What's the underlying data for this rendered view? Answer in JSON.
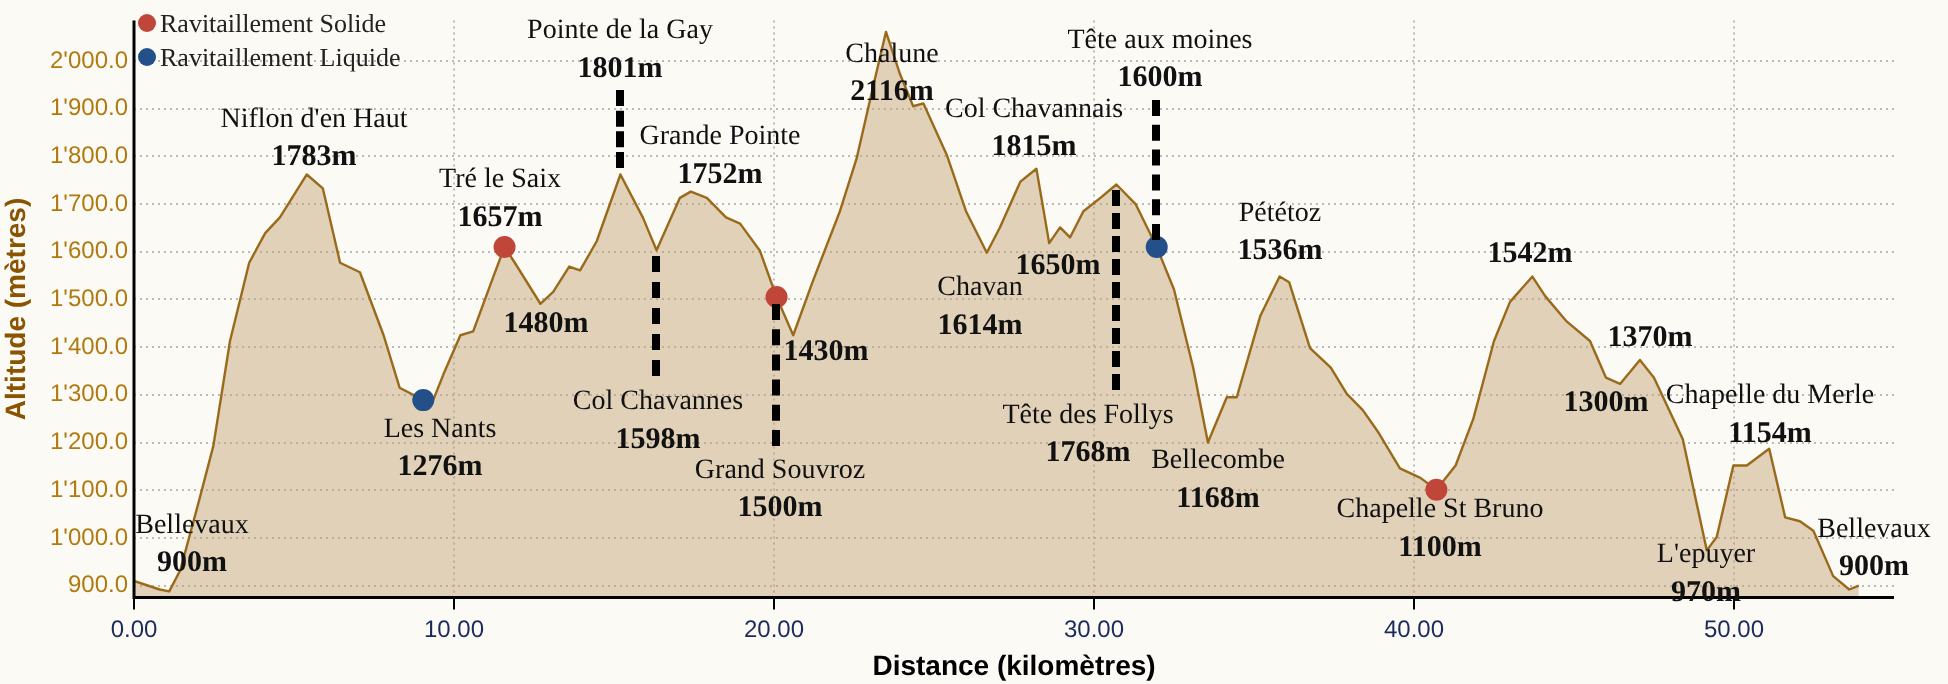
{
  "chart_data": {
    "type": "area",
    "xlabel": "Distance (kilomètres)",
    "ylabel": "Altitude (mètres)",
    "xlim": [
      0,
      55
    ],
    "ylim": [
      875,
      2085
    ],
    "xticks": [
      {
        "value": 0,
        "label": "0.00"
      },
      {
        "value": 10,
        "label": "10.00"
      },
      {
        "value": 20,
        "label": "20.00"
      },
      {
        "value": 30,
        "label": "30.00"
      },
      {
        "value": 40,
        "label": "40.00"
      },
      {
        "value": 50,
        "label": "50.00"
      }
    ],
    "yticks": [
      {
        "value": 900,
        "label": "900.0"
      },
      {
        "value": 1000,
        "label": "1'000.0"
      },
      {
        "value": 1100,
        "label": "1'100.0"
      },
      {
        "value": 1200,
        "label": "1'200.0"
      },
      {
        "value": 1300,
        "label": "1'300.0"
      },
      {
        "value": 1400,
        "label": "1'400.0"
      },
      {
        "value": 1500,
        "label": "1'500.0"
      },
      {
        "value": 1600,
        "label": "1'600.0"
      },
      {
        "value": 1700,
        "label": "1'700.0"
      },
      {
        "value": 1800,
        "label": "1'800.0"
      },
      {
        "value": 1900,
        "label": "1'900.0"
      },
      {
        "value": 2000,
        "label": "2'000.0"
      }
    ],
    "grid": true,
    "legend": "top left",
    "series": [
      {
        "color": "#9a6a1a",
        "x": [
          0,
          0.8,
          1.1,
          1.45,
          2.06,
          2.48,
          3.0,
          3.6,
          4.1,
          4.56,
          5.4,
          5.9,
          6.44,
          7.06,
          7.8,
          8.3,
          9.04,
          9.35,
          9.67,
          10.2,
          10.6,
          11.23,
          11.58,
          11.9,
          12.7,
          13.1,
          13.6,
          13.94,
          14.46,
          15.2,
          15.9,
          16.33,
          17.06,
          17.4,
          17.9,
          18.5,
          18.94,
          19.56,
          20.08,
          20.6,
          21.2,
          22.06,
          22.58,
          23.1,
          23.5,
          23.94,
          24.35,
          24.67,
          25.4,
          26.0,
          26.65,
          27.06,
          27.7,
          28.2,
          28.6,
          28.94,
          29.25,
          29.67,
          30.2,
          30.7,
          31.3,
          31.96,
          32.5,
          33.1,
          33.56,
          34.15,
          34.46,
          35.2,
          35.8,
          36.1,
          36.75,
          37.4,
          37.9,
          38.4,
          38.9,
          39.56,
          40.2,
          40.7,
          41.3,
          41.85,
          42.5,
          43.0,
          43.7,
          44.1,
          44.77,
          45.5,
          46.0,
          46.44,
          47.06,
          47.5,
          48.4,
          49.15,
          49.46,
          49.98,
          50.4,
          51.1,
          51.6,
          52.06,
          52.48,
          53.1,
          53.6,
          53.9
        ],
        "values": [
          910,
          892,
          888,
          933,
          1085,
          1193,
          1413,
          1577,
          1639,
          1672,
          1762,
          1733,
          1577,
          1557,
          1425,
          1315,
          1289,
          1289,
          1343,
          1425,
          1433,
          1548,
          1610,
          1577,
          1491,
          1516,
          1569,
          1561,
          1622,
          1762,
          1672,
          1603,
          1713,
          1726,
          1713,
          1672,
          1659,
          1602,
          1505,
          1425,
          1536,
          1685,
          1795,
          1947,
          2061,
          1972,
          1905,
          1911,
          1803,
          1685,
          1598,
          1651,
          1747,
          1774,
          1618,
          1651,
          1630,
          1685,
          1713,
          1741,
          1700,
          1610,
          1521,
          1357,
          1200,
          1295,
          1295,
          1466,
          1548,
          1536,
          1398,
          1357,
          1302,
          1268,
          1220,
          1146,
          1126,
          1101,
          1152,
          1249,
          1413,
          1495,
          1548,
          1507,
          1454,
          1413,
          1336,
          1323,
          1373,
          1336,
          1207,
          974,
          1002,
          1152,
          1152,
          1187,
          1043,
          1035,
          1015,
          920,
          892,
          900
        ]
      },
      {
        "type": "scatter",
        "name": "Ravitaillement Solide",
        "color": "#c0463a",
        "x": [
          11.58,
          20.08,
          40.7
        ],
        "values": [
          1610,
          1505,
          1101
        ]
      },
      {
        "type": "scatter",
        "name": "Ravitaillement Liquide",
        "color": "#24508a",
        "x": [
          9.04,
          31.96
        ],
        "values": [
          1289,
          1610
        ]
      }
    ],
    "annotations": [
      "Bellevaux\n900m",
      "Niflon d'en Haut\n1783m",
      "Tré le Saix\n1657m",
      "1480m",
      "Les Nants\n1276m",
      {
        "text": "Pointe de la Gay\n1801m",
        "x": 15.2,
        "y": 1762
      },
      "Grande Pointe\n1752m",
      {
        "text": "Col Chavannes\n1598m",
        "x": 16.33,
        "y": 1603
      },
      {
        "text": "Grand Souvroz\n1500m",
        "x": 20.08,
        "y": 1505
      },
      "1430m",
      "Chalune\n2116m",
      "Col Chavannais\n1815m",
      {
        "text": "Tête aux moines\n1600m",
        "x": 31.96,
        "y": 1610
      },
      "1650m",
      "Chavan\n1614m",
      {
        "text": "Tête des Follys\n1768m",
        "x": 30.7,
        "y": 1741
      },
      "Bellecombe\n1168m",
      "Pététoz\n1536m",
      "1542m",
      "1370m",
      "1300m",
      "Chapelle du Merle\n1154m",
      "Chapelle St Bruno\n1100m",
      "L'epuyer\n970m",
      "Bellevaux\n900m"
    ]
  }
}
